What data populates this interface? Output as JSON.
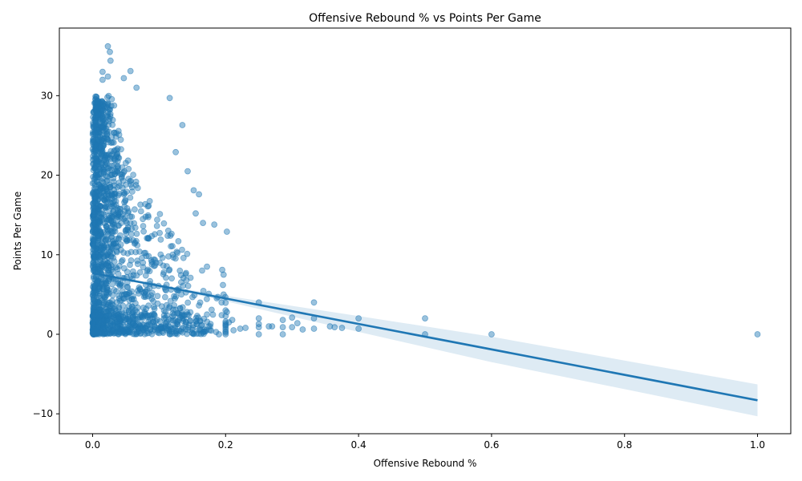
{
  "chart_data": {
    "type": "scatter",
    "title": "Offensive Rebound % vs Points Per Game",
    "xlabel": "Offensive Rebound %",
    "ylabel": "Points Per Game",
    "xlim": [
      -0.05,
      1.05
    ],
    "ylim": [
      -12.5,
      38.5
    ],
    "x_ticks": [
      0.0,
      0.2,
      0.4,
      0.6,
      0.8,
      1.0
    ],
    "x_tick_labels": [
      "0.0",
      "0.2",
      "0.4",
      "0.6",
      "0.8",
      "1.0"
    ],
    "y_ticks": [
      -10,
      0,
      10,
      20,
      30
    ],
    "y_tick_labels": [
      "−10",
      "0",
      "10",
      "20",
      "30"
    ],
    "grid": false,
    "colors": {
      "points": "#1f77b4",
      "line": "#1f77b4",
      "band": "#1f77b4"
    },
    "cloud": {
      "x_range": [
        0.0,
        0.2
      ],
      "y_range": [
        0,
        30
      ],
      "count": 1400
    },
    "points": [
      {
        "x": 0.023,
        "y": 36.2
      },
      {
        "x": 0.026,
        "y": 35.5
      },
      {
        "x": 0.027,
        "y": 34.4
      },
      {
        "x": 0.057,
        "y": 33.1
      },
      {
        "x": 0.015,
        "y": 33.0
      },
      {
        "x": 0.023,
        "y": 32.4
      },
      {
        "x": 0.047,
        "y": 32.2
      },
      {
        "x": 0.015,
        "y": 32.0
      },
      {
        "x": 0.066,
        "y": 31.0
      },
      {
        "x": 0.116,
        "y": 29.7
      },
      {
        "x": 0.135,
        "y": 26.3
      },
      {
        "x": 0.125,
        "y": 22.9
      },
      {
        "x": 0.143,
        "y": 20.5
      },
      {
        "x": 0.152,
        "y": 18.1
      },
      {
        "x": 0.16,
        "y": 17.6
      },
      {
        "x": 0.155,
        "y": 15.2
      },
      {
        "x": 0.183,
        "y": 13.8
      },
      {
        "x": 0.202,
        "y": 12.9
      },
      {
        "x": 0.166,
        "y": 14.0
      },
      {
        "x": 0.172,
        "y": 8.5
      },
      {
        "x": 0.195,
        "y": 8.1
      },
      {
        "x": 0.197,
        "y": 7.5
      },
      {
        "x": 0.196,
        "y": 6.2
      },
      {
        "x": 0.197,
        "y": 5.0
      },
      {
        "x": 0.194,
        "y": 4.0
      },
      {
        "x": 0.2,
        "y": 3.0
      },
      {
        "x": 0.202,
        "y": 2.8
      },
      {
        "x": 0.2,
        "y": 1.6
      },
      {
        "x": 0.205,
        "y": 1.5
      },
      {
        "x": 0.21,
        "y": 1.8
      },
      {
        "x": 0.212,
        "y": 0.5
      },
      {
        "x": 0.222,
        "y": 0.7
      },
      {
        "x": 0.23,
        "y": 0.8
      },
      {
        "x": 0.2,
        "y": 0.0
      },
      {
        "x": 0.19,
        "y": 0.0
      },
      {
        "x": 0.25,
        "y": 4.0
      },
      {
        "x": 0.25,
        "y": 2.0
      },
      {
        "x": 0.25,
        "y": 1.3
      },
      {
        "x": 0.25,
        "y": 0.9
      },
      {
        "x": 0.25,
        "y": 0.0
      },
      {
        "x": 0.265,
        "y": 1.0
      },
      {
        "x": 0.27,
        "y": 1.0
      },
      {
        "x": 0.286,
        "y": 1.8
      },
      {
        "x": 0.286,
        "y": 0.9
      },
      {
        "x": 0.286,
        "y": 0.0
      },
      {
        "x": 0.3,
        "y": 2.1
      },
      {
        "x": 0.3,
        "y": 0.9
      },
      {
        "x": 0.308,
        "y": 1.4
      },
      {
        "x": 0.316,
        "y": 0.6
      },
      {
        "x": 0.333,
        "y": 4.0
      },
      {
        "x": 0.333,
        "y": 2.0
      },
      {
        "x": 0.333,
        "y": 0.7
      },
      {
        "x": 0.357,
        "y": 1.0
      },
      {
        "x": 0.364,
        "y": 0.9
      },
      {
        "x": 0.375,
        "y": 0.8
      },
      {
        "x": 0.4,
        "y": 2.0
      },
      {
        "x": 0.4,
        "y": 0.7
      },
      {
        "x": 0.5,
        "y": 2.0
      },
      {
        "x": 0.5,
        "y": 0.0
      },
      {
        "x": 0.6,
        "y": 0.0
      },
      {
        "x": 1.0,
        "y": 0.0
      }
    ],
    "regression": {
      "x": [
        0.0,
        0.1,
        0.2,
        0.4,
        0.6,
        0.8,
        1.0
      ],
      "y": [
        7.7,
        6.1,
        4.5,
        1.3,
        -1.9,
        -5.1,
        -8.3
      ],
      "ci_low": [
        7.55,
        6.0,
        4.15,
        0.3,
        -3.5,
        -6.9,
        -10.3
      ],
      "ci_high": [
        7.85,
        6.2,
        4.85,
        2.3,
        -0.3,
        -3.3,
        -6.3
      ]
    }
  }
}
